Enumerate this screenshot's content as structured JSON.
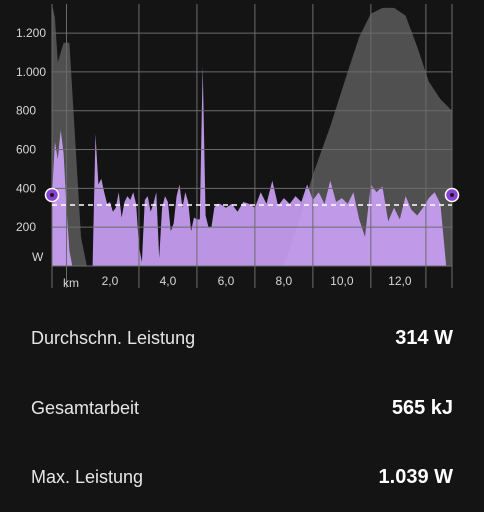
{
  "chart_data": {
    "type": "area",
    "xlabel": "km",
    "ylabel": "W",
    "xlim": [
      0,
      13.8
    ],
    "ylim": [
      0,
      1350
    ],
    "x_ticks": [
      {
        "value": 2.0,
        "label": "2,0"
      },
      {
        "value": 4.0,
        "label": "4,0"
      },
      {
        "value": 6.0,
        "label": "6,0"
      },
      {
        "value": 8.0,
        "label": "8,0"
      },
      {
        "value": 10.0,
        "label": "10,0"
      },
      {
        "value": 12.0,
        "label": "12,0"
      }
    ],
    "y_ticks": [
      {
        "value": 200,
        "label": "200"
      },
      {
        "value": 400,
        "label": "400"
      },
      {
        "value": 600,
        "label": "600"
      },
      {
        "value": 800,
        "label": "800"
      },
      {
        "value": 1000,
        "label": "1.000"
      },
      {
        "value": 1200,
        "label": "1.200"
      }
    ],
    "average_power": 314,
    "colors": {
      "power": "#caa0f5",
      "elevation": "#5a5a5a",
      "marker": "#8a3fd6",
      "grid": "#6b6b6b",
      "average_line": "#ffffff"
    },
    "series": [
      {
        "key": "power",
        "x": [
          0.0,
          0.1,
          0.2,
          0.3,
          0.4,
          0.5,
          0.6,
          0.7,
          0.8,
          0.9,
          1.0,
          1.1,
          1.2,
          1.3,
          1.4,
          1.5,
          1.6,
          1.7,
          1.8,
          1.9,
          2.0,
          2.1,
          2.2,
          2.3,
          2.4,
          2.5,
          2.6,
          2.7,
          2.8,
          2.9,
          3.0,
          3.1,
          3.2,
          3.3,
          3.4,
          3.5,
          3.6,
          3.7,
          3.8,
          3.9,
          4.0,
          4.1,
          4.2,
          4.3,
          4.4,
          4.5,
          4.6,
          4.7,
          4.8,
          4.9,
          5.0,
          5.1,
          5.2,
          5.3,
          5.4,
          5.5,
          5.6,
          5.7,
          5.8,
          5.9,
          6.0,
          6.2,
          6.4,
          6.6,
          6.8,
          7.0,
          7.2,
          7.4,
          7.6,
          7.8,
          8.0,
          8.2,
          8.4,
          8.6,
          8.8,
          9.0,
          9.2,
          9.4,
          9.6,
          9.8,
          10.0,
          10.2,
          10.4,
          10.6,
          10.8,
          11.0,
          11.2,
          11.4,
          11.6,
          11.8,
          12.0,
          12.2,
          12.4,
          12.6,
          12.8,
          13.0,
          13.2,
          13.4,
          13.6,
          13.8
        ],
        "values": [
          360,
          640,
          550,
          700,
          580,
          300,
          80,
          0,
          0,
          0,
          0,
          0,
          0,
          0,
          0,
          680,
          420,
          450,
          380,
          320,
          330,
          280,
          300,
          380,
          250,
          330,
          360,
          340,
          380,
          320,
          100,
          20,
          340,
          360,
          280,
          320,
          380,
          40,
          300,
          360,
          330,
          180,
          220,
          360,
          420,
          300,
          380,
          330,
          180,
          250,
          240,
          240,
          1030,
          260,
          200,
          200,
          300,
          320,
          320,
          310,
          300,
          320,
          280,
          330,
          320,
          300,
          380,
          320,
          440,
          310,
          350,
          320,
          360,
          330,
          420,
          340,
          380,
          320,
          440,
          330,
          350,
          320,
          380,
          240,
          150,
          420,
          380,
          410,
          230,
          300,
          240,
          360,
          290,
          260,
          300,
          350,
          380,
          320,
          0,
          0
        ]
      },
      {
        "key": "elevation",
        "x": [
          0.0,
          0.1,
          0.2,
          0.4,
          0.6,
          0.8,
          1.0,
          1.2,
          1.4,
          1.6,
          1.8,
          2.0,
          2.5,
          3.0,
          4.0,
          5.0,
          5.4,
          5.8,
          6.2,
          7.0,
          8.0,
          8.6,
          9.0,
          9.6,
          10.2,
          10.6,
          11.0,
          11.4,
          11.8,
          12.2,
          12.6,
          13.0,
          13.4,
          13.8
        ],
        "values": [
          1350,
          1280,
          1050,
          1150,
          1150,
          650,
          150,
          0,
          0,
          0,
          0,
          0,
          0,
          0,
          0,
          0,
          0,
          0,
          0,
          0,
          0,
          270,
          470,
          720,
          1000,
          1180,
          1300,
          1330,
          1330,
          1290,
          1130,
          950,
          860,
          800
        ]
      }
    ]
  },
  "stats": [
    {
      "label": "Durchschn. Leistung",
      "value": "314 W"
    },
    {
      "label": "Gesamtarbeit",
      "value": "565 kJ"
    },
    {
      "label": "Max. Leistung",
      "value": "1.039 W"
    }
  ]
}
